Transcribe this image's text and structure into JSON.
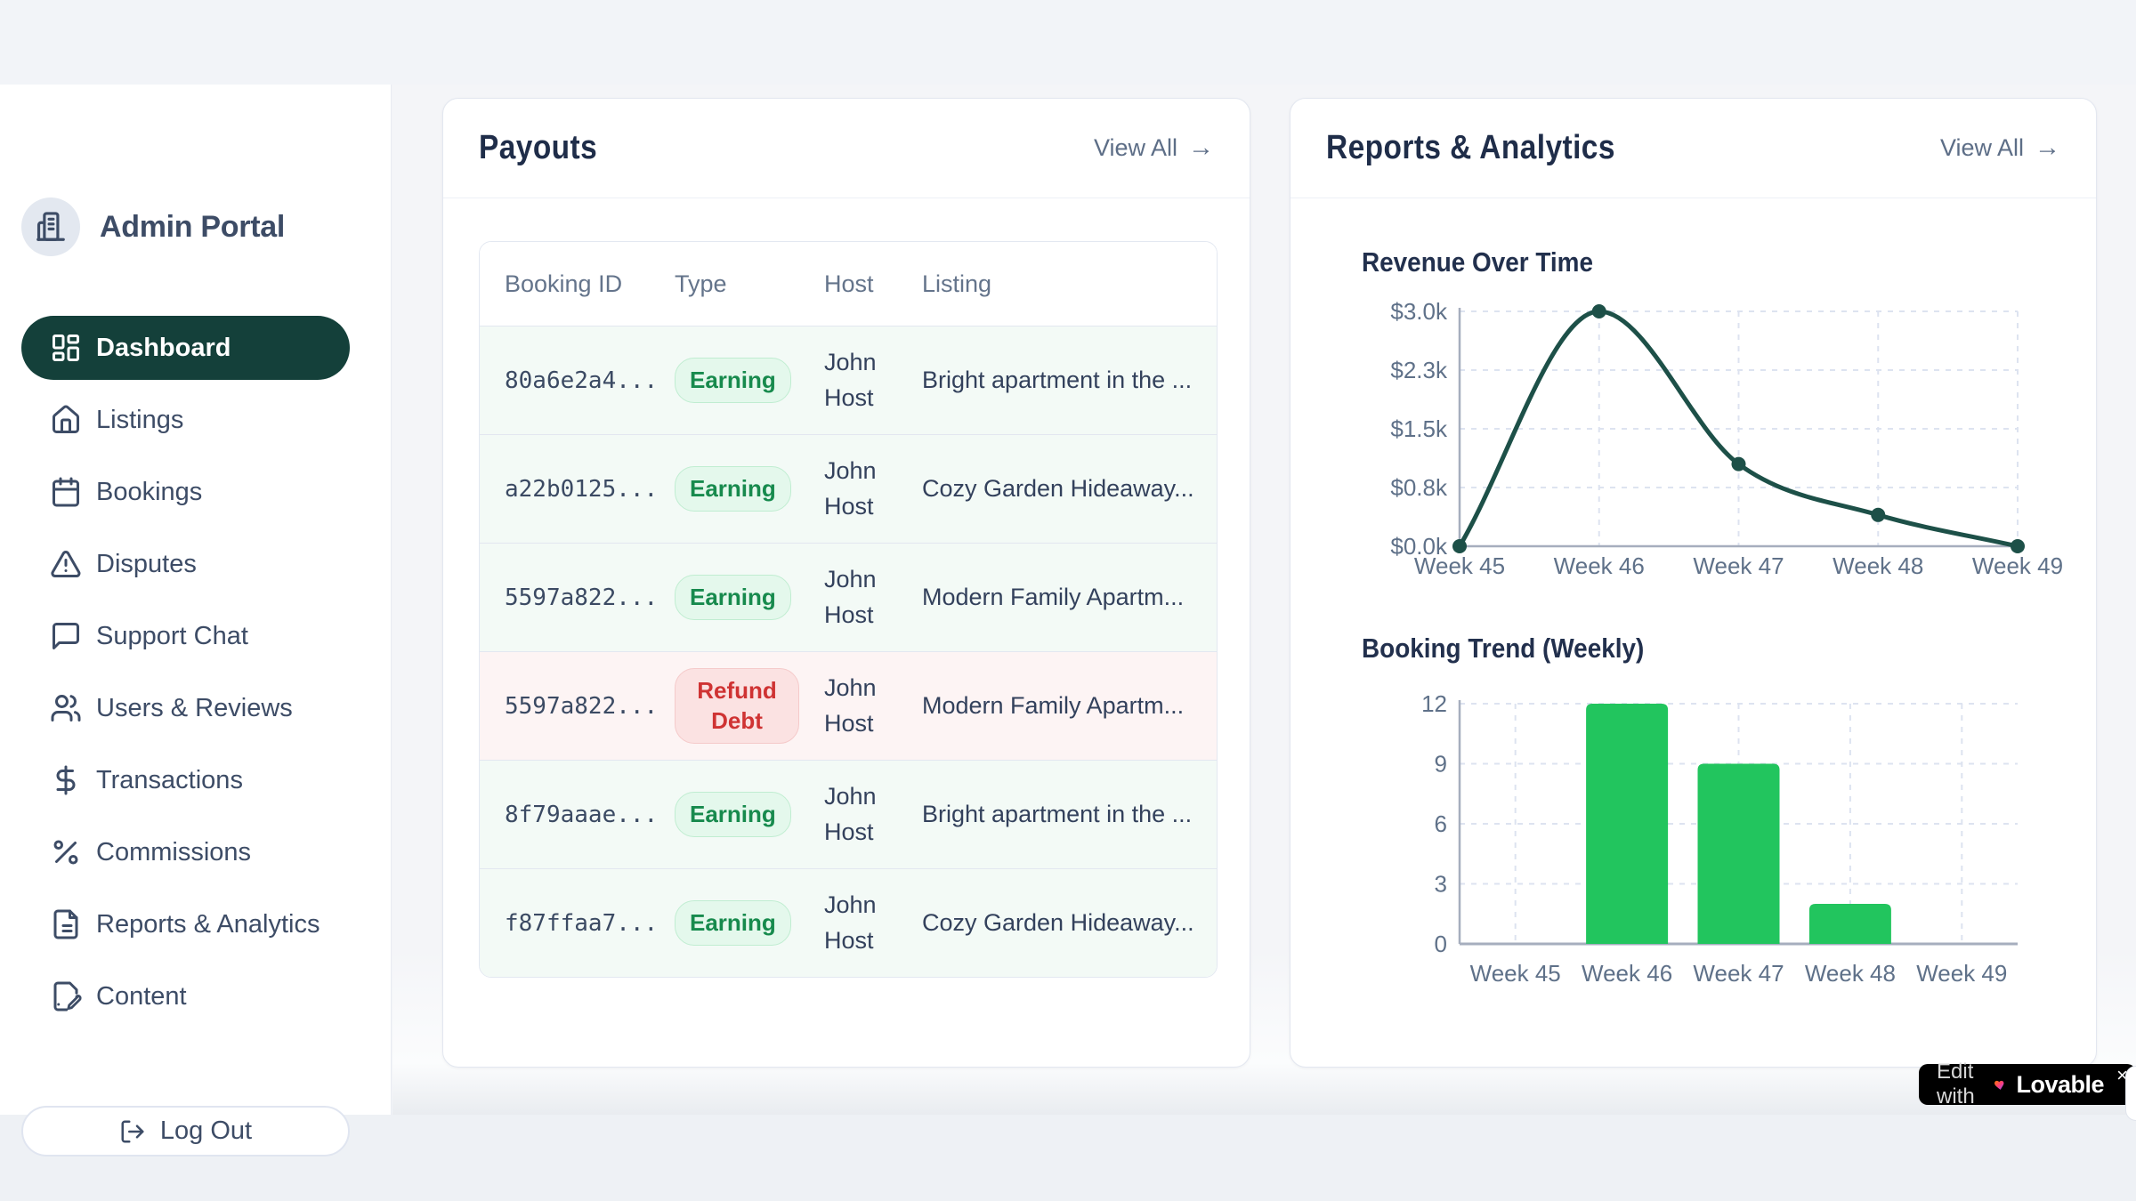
{
  "app": {
    "brand": "Admin Portal"
  },
  "sidebar": {
    "items": [
      {
        "label": "Dashboard",
        "icon": "grid",
        "active": true
      },
      {
        "label": "Listings",
        "icon": "home",
        "active": false
      },
      {
        "label": "Bookings",
        "icon": "calendar",
        "active": false
      },
      {
        "label": "Disputes",
        "icon": "alert-triangle",
        "active": false
      },
      {
        "label": "Support Chat",
        "icon": "chat",
        "active": false
      },
      {
        "label": "Users & Reviews",
        "icon": "users",
        "active": false
      },
      {
        "label": "Transactions",
        "icon": "dollar",
        "active": false
      },
      {
        "label": "Commissions",
        "icon": "percent",
        "active": false
      },
      {
        "label": "Reports & Analytics",
        "icon": "file-text",
        "active": false
      },
      {
        "label": "Content",
        "icon": "file-pen",
        "active": false
      }
    ],
    "logout_label": "Log Out"
  },
  "payouts": {
    "title": "Payouts",
    "view_all_label": "View All",
    "columns": [
      "Booking ID",
      "Type",
      "Host",
      "Listing"
    ],
    "rows": [
      {
        "booking_id": "80a6e2a4...",
        "type": "Earning",
        "type_kind": "earning",
        "host": "John Host",
        "listing": "Bright apartment in the ..."
      },
      {
        "booking_id": "a22b0125...",
        "type": "Earning",
        "type_kind": "earning",
        "host": "John Host",
        "listing": "Cozy Garden Hideaway..."
      },
      {
        "booking_id": "5597a822...",
        "type": "Earning",
        "type_kind": "earning",
        "host": "John Host",
        "listing": "Modern Family Apartm..."
      },
      {
        "booking_id": "5597a822...",
        "type": "Refund Debt",
        "type_kind": "refund",
        "host": "John Host",
        "listing": "Modern Family Apartm..."
      },
      {
        "booking_id": "8f79aaae...",
        "type": "Earning",
        "type_kind": "earning",
        "host": "John Host",
        "listing": "Bright apartment in the ..."
      },
      {
        "booking_id": "f87ffaa7...",
        "type": "Earning",
        "type_kind": "earning",
        "host": "John Host",
        "listing": "Cozy Garden Hideaway..."
      }
    ]
  },
  "reports": {
    "title": "Reports & Analytics",
    "view_all_label": "View All"
  },
  "chart_data": [
    {
      "type": "line",
      "title": "Revenue Over Time",
      "categories": [
        "Week 45",
        "Week 46",
        "Week 47",
        "Week 48",
        "Week 49"
      ],
      "values": [
        0,
        3000,
        1050,
        400,
        0
      ],
      "y_ticks": [
        0,
        750,
        1500,
        2250,
        3000
      ],
      "y_tick_labels": [
        "$0.0k",
        "$0.8k",
        "$1.5k",
        "$2.3k",
        "$3.0k"
      ],
      "xlabel": "",
      "ylabel": "",
      "ylim": [
        0,
        3000
      ],
      "grid": "dashed",
      "legend": "none",
      "line_color": "#1d5048",
      "point_color": "#1d5048"
    },
    {
      "type": "bar",
      "title": "Booking Trend (Weekly)",
      "categories": [
        "Week 45",
        "Week 46",
        "Week 47",
        "Week 48",
        "Week 49"
      ],
      "values": [
        0,
        12,
        9,
        2,
        0
      ],
      "y_ticks": [
        0,
        3,
        6,
        9,
        12
      ],
      "y_tick_labels": [
        "0",
        "3",
        "6",
        "9",
        "12"
      ],
      "xlabel": "",
      "ylabel": "",
      "ylim": [
        0,
        12
      ],
      "grid": "dashed",
      "legend": "none",
      "bar_color": "#22c55e"
    }
  ],
  "lovable_badge": {
    "prefix": "Edit with",
    "brand": "Lovable",
    "close": "×"
  },
  "colors": {
    "sidebar_active_bg": "#14403a",
    "sidebar_text": "#3d4c66",
    "card_title": "#1f2d49",
    "muted_text": "#64748b",
    "line_color": "#1d5048",
    "bar_color": "#22c55e",
    "earning_text": "#178a4d",
    "earning_bg": "#e4f8ec",
    "refund_text": "#cf3333",
    "refund_bg": "#fbe2e2",
    "earning_row_bg": "#f3faf6",
    "refund_row_bg": "#fdf4f4",
    "page_bg": "#f2f4f8",
    "axis_color": "#a6aebe",
    "grid_color": "#dde3f0",
    "tick_text": "#5f7189"
  }
}
